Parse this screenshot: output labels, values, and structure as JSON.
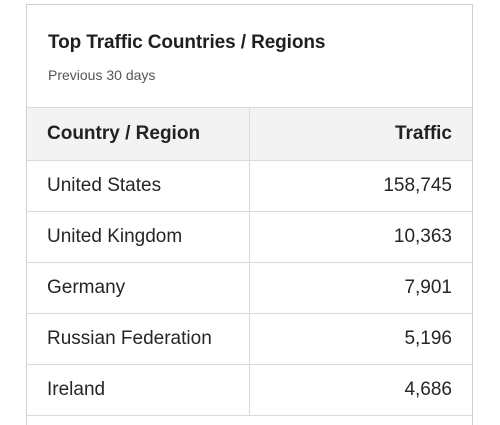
{
  "card": {
    "title": "Top Traffic Countries / Regions",
    "subtitle": "Previous 30 days"
  },
  "table": {
    "headers": {
      "country": "Country / Region",
      "traffic": "Traffic"
    },
    "rows": [
      {
        "country": "United States",
        "traffic": "158,745"
      },
      {
        "country": "United Kingdom",
        "traffic": "10,363"
      },
      {
        "country": "Germany",
        "traffic": "7,901"
      },
      {
        "country": "Russian Federation",
        "traffic": "5,196"
      },
      {
        "country": "Ireland",
        "traffic": "4,686"
      }
    ]
  }
}
